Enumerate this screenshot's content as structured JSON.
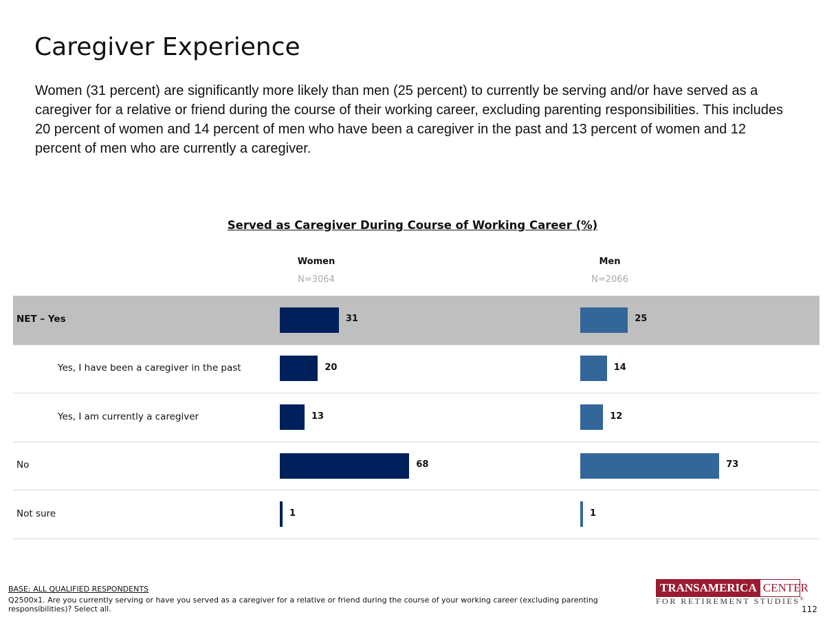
{
  "slide": {
    "title": "Caregiver Experience",
    "summary": "Women (31 percent) are significantly more likely than men (25 percent) to currently be serving and/or have served as a caregiver for a relative or friend during the course of their working career, excluding parenting responsibilities. This includes 20 percent of women and 14 percent of men who have been a caregiver in the past and 13 percent of women and 12 percent of men who are currently a caregiver.",
    "page_number": "112"
  },
  "footer": {
    "base": "BASE: ALL QUALIFIED RESPONDENTS",
    "question": "Q2500x1. Are you currently serving or have you served as a caregiver for a relative or friend during the course of your working career (excluding parenting responsibilities)? Select all.",
    "logo_main": "TRANSAMERICA",
    "logo_center": "CENTER",
    "logo_sub": "FOR RETIREMENT STUDIES",
    "logo_mark": "®"
  },
  "colors": {
    "women": "#00205b",
    "men": "#336699",
    "highlight": "#bfbfbf"
  },
  "chart_data": {
    "type": "bar",
    "title": "Served as Caregiver During Course of Working Career (%)",
    "categories": [
      "NET – Yes",
      "Yes, I have been a caregiver in the past",
      "Yes, I am currently a caregiver",
      "No",
      "Not sure"
    ],
    "highlighted_category": "NET – Yes",
    "xlim": [
      0,
      100
    ],
    "series": [
      {
        "name": "Women",
        "n": "N=3064",
        "values": [
          31,
          20,
          13,
          68,
          1
        ]
      },
      {
        "name": "Men",
        "n": "N=2066",
        "values": [
          25,
          14,
          12,
          73,
          1
        ]
      }
    ]
  }
}
